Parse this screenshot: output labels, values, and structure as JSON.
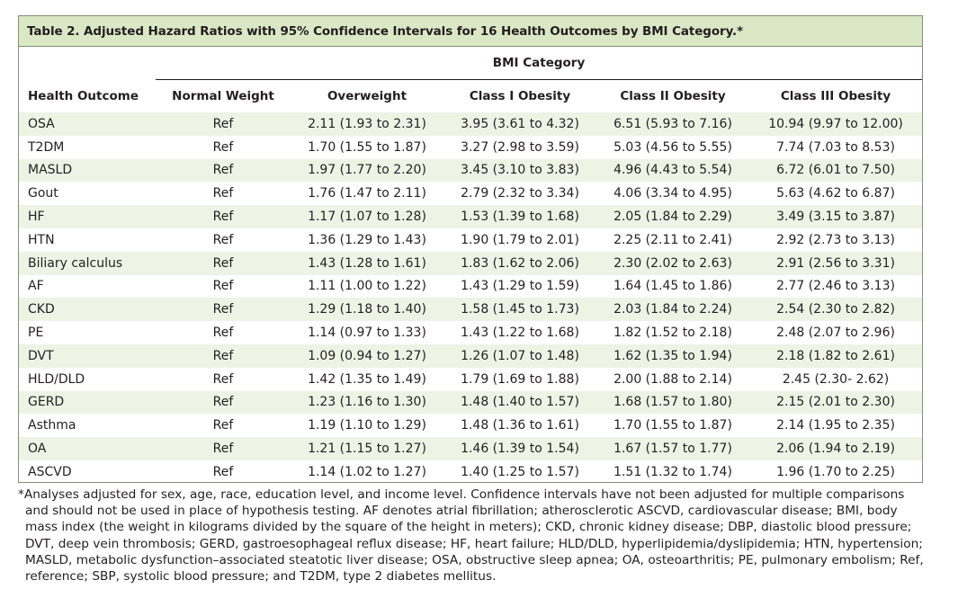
{
  "caption": "Table 2. Adjusted Hazard Ratios with 95% Confidence Intervals for 16 Health Outcomes by BMI Category.*",
  "group_header": "BMI Category",
  "columns": {
    "outcome": "Health Outcome",
    "normal": "Normal Weight",
    "overweight": "Overweight",
    "class1": "Class I Obesity",
    "class2": "Class II Obesity",
    "class3": "Class III Obesity"
  },
  "rows": [
    {
      "outcome": "OSA",
      "normal": "Ref",
      "overweight": "2.11 (1.93 to 2.31)",
      "class1": "3.95 (3.61 to 4.32)",
      "class2": "6.51 (5.93 to 7.16)",
      "class3": "10.94 (9.97 to 12.00)"
    },
    {
      "outcome": "T2DM",
      "normal": "Ref",
      "overweight": "1.70 (1.55 to 1.87)",
      "class1": "3.27 (2.98 to 3.59)",
      "class2": "5.03 (4.56 to 5.55)",
      "class3": "7.74 (7.03 to 8.53)"
    },
    {
      "outcome": "MASLD",
      "normal": "Ref",
      "overweight": "1.97 (1.77 to 2.20)",
      "class1": "3.45 (3.10 to 3.83)",
      "class2": "4.96 (4.43 to 5.54)",
      "class3": "6.72 (6.01 to 7.50)"
    },
    {
      "outcome": "Gout",
      "normal": "Ref",
      "overweight": "1.76 (1.47 to 2.11)",
      "class1": "2.79 (2.32 to 3.34)",
      "class2": "4.06 (3.34 to 4.95)",
      "class3": "5.63 (4.62 to 6.87)"
    },
    {
      "outcome": "HF",
      "normal": "Ref",
      "overweight": "1.17 (1.07 to 1.28)",
      "class1": "1.53 (1.39 to 1.68)",
      "class2": "2.05 (1.84 to 2.29)",
      "class3": "3.49 (3.15 to 3.87)"
    },
    {
      "outcome": "HTN",
      "normal": "Ref",
      "overweight": "1.36 (1.29 to 1.43)",
      "class1": "1.90 (1.79 to 2.01)",
      "class2": "2.25 (2.11 to 2.41)",
      "class3": "2.92 (2.73 to 3.13)"
    },
    {
      "outcome": "Biliary calculus",
      "normal": "Ref",
      "overweight": "1.43 (1.28 to 1.61)",
      "class1": "1.83 (1.62 to 2.06)",
      "class2": "2.30 (2.02 to 2.63)",
      "class3": "2.91 (2.56 to 3.31)"
    },
    {
      "outcome": "AF",
      "normal": "Ref",
      "overweight": "1.11 (1.00 to 1.22)",
      "class1": "1.43 (1.29 to 1.59)",
      "class2": "1.64 (1.45 to 1.86)",
      "class3": "2.77 (2.46 to 3.13)"
    },
    {
      "outcome": "CKD",
      "normal": "Ref",
      "overweight": "1.29 (1.18 to 1.40)",
      "class1": "1.58 (1.45 to 1.73)",
      "class2": "2.03 (1.84 to 2.24)",
      "class3": "2.54 (2.30 to 2.82)"
    },
    {
      "outcome": "PE",
      "normal": "Ref",
      "overweight": "1.14 (0.97 to 1.33)",
      "class1": "1.43 (1.22 to 1.68)",
      "class2": "1.82 (1.52 to 2.18)",
      "class3": "2.48 (2.07 to 2.96)"
    },
    {
      "outcome": "DVT",
      "normal": "Ref",
      "overweight": "1.09 (0.94 to 1.27)",
      "class1": "1.26 (1.07 to 1.48)",
      "class2": "1.62 (1.35 to 1.94)",
      "class3": "2.18 (1.82 to 2.61)"
    },
    {
      "outcome": "HLD/DLD",
      "normal": "Ref",
      "overweight": "1.42 (1.35 to 1.49)",
      "class1": "1.79 (1.69 to 1.88)",
      "class2": "2.00 (1.88 to 2.14)",
      "class3": "2.45 (2.30- 2.62)"
    },
    {
      "outcome": "GERD",
      "normal": "Ref",
      "overweight": "1.23 (1.16 to 1.30)",
      "class1": "1.48 (1.40 to 1.57)",
      "class2": "1.68 (1.57 to 1.80)",
      "class3": "2.15 (2.01 to 2.30)"
    },
    {
      "outcome": "Asthma",
      "normal": "Ref",
      "overweight": "1.19 (1.10 to 1.29)",
      "class1": "1.48 (1.36 to 1.61)",
      "class2": "1.70 (1.55 to 1.87)",
      "class3": "2.14 (1.95 to 2.35)"
    },
    {
      "outcome": "OA",
      "normal": "Ref",
      "overweight": "1.21 (1.15 to 1.27)",
      "class1": "1.46 (1.39 to 1.54)",
      "class2": "1.67 (1.57 to 1.77)",
      "class3": "2.06 (1.94 to 2.19)"
    },
    {
      "outcome": "ASCVD",
      "normal": "Ref",
      "overweight": "1.14 (1.02 to 1.27)",
      "class1": "1.40 (1.25 to 1.57)",
      "class2": "1.51 (1.32 to 1.74)",
      "class3": "1.96 (1.70 to 2.25)"
    }
  ],
  "footnote": "*Analyses adjusted for sex, age, race, education level, and income level. Confidence intervals have not been adjusted for multiple comparisons and should not be used in place of hypothesis testing. AF denotes atrial fibrillation; atherosclerotic ASCVD, cardiovascular disease; BMI, body mass index (the weight in kilograms divided by the square of the height in meters); CKD, chronic kidney disease; DBP, diastolic blood pressure; DVT, deep vein thrombosis; GERD, gastroesophageal reflux disease; HF, heart failure; HLD/DLD, hyperlipidemia/dyslipidemia; HTN, hypertension; MASLD, metabolic dysfunction–associated steatotic liver disease; OSA, obstructive sleep apnea; OA, osteoarthritis; PE, pulmonary embolism; Ref, reference; SBP, systolic blood pressure; and T2DM, type 2 diabetes mellitus.",
  "colors": {
    "caption_background": "#dbe8c6",
    "stripe": "#eef3e6",
    "border": "#7f8f73",
    "text": "#231f20"
  }
}
